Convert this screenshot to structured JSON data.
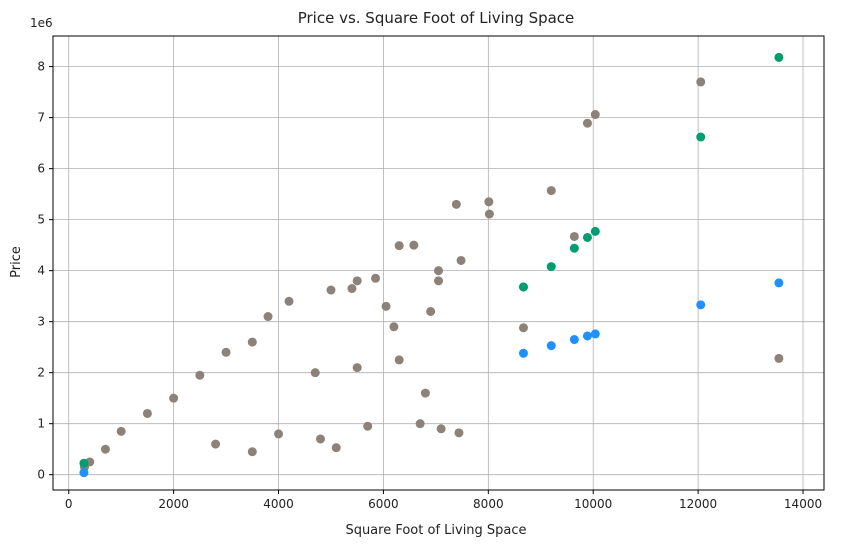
{
  "chart_data": {
    "type": "scatter",
    "title": "Price vs. Square Foot of Living Space",
    "xlabel": "Square Foot of Living Space",
    "ylabel": "Price",
    "y_offset_label": "1e6",
    "xlim": [
      -300,
      14400
    ],
    "ylim": [
      -300000,
      8600000
    ],
    "x_ticks": [
      0,
      2000,
      4000,
      6000,
      8000,
      10000,
      12000,
      14000
    ],
    "x_tick_labels": [
      "0",
      "2000",
      "4000",
      "6000",
      "8000",
      "10000",
      "12000",
      "14000"
    ],
    "y_ticks": [
      0,
      1000000,
      2000000,
      3000000,
      4000000,
      5000000,
      6000000,
      7000000,
      8000000
    ],
    "y_tick_labels": [
      "0",
      "1",
      "2",
      "3",
      "4",
      "5",
      "6",
      "7",
      "8"
    ],
    "grid": true,
    "series": [
      {
        "color": "#8c8279",
        "points": [
          [
            13540,
            2280000
          ],
          [
            12050,
            7700000
          ],
          [
            10040,
            7060000
          ],
          [
            9890,
            6890000
          ],
          [
            9640,
            4670000
          ],
          [
            9200,
            5570000
          ],
          [
            8670,
            2880000
          ],
          [
            8670,
            3680000
          ],
          [
            8010,
            5350000
          ],
          [
            8020,
            5110000
          ],
          [
            7390,
            5300000
          ],
          [
            7480,
            4200000
          ],
          [
            7050,
            4000000
          ],
          [
            7050,
            3800000
          ],
          [
            7440,
            820000
          ],
          [
            7100,
            900000
          ],
          [
            6580,
            4500000
          ],
          [
            6300,
            4490000
          ],
          [
            6050,
            3300000
          ],
          [
            5850,
            3850000
          ],
          [
            5500,
            3800000
          ],
          [
            5400,
            3650000
          ],
          [
            5000,
            3620000
          ],
          [
            4200,
            3400000
          ],
          [
            4700,
            2000000
          ],
          [
            5500,
            2100000
          ],
          [
            6300,
            2250000
          ],
          [
            6800,
            1600000
          ],
          [
            6700,
            1000000
          ],
          [
            5700,
            950000
          ],
          [
            5100,
            530000
          ],
          [
            4800,
            700000
          ],
          [
            3800,
            3100000
          ],
          [
            3500,
            2600000
          ],
          [
            3000,
            2400000
          ],
          [
            2500,
            1950000
          ],
          [
            2000,
            1500000
          ],
          [
            1500,
            1200000
          ],
          [
            1000,
            850000
          ],
          [
            700,
            500000
          ],
          [
            400,
            250000
          ],
          [
            300,
            150000
          ],
          [
            6900,
            3200000
          ],
          [
            6200,
            2900000
          ],
          [
            4000,
            800000
          ],
          [
            3500,
            450000
          ],
          [
            2800,
            600000
          ]
        ]
      },
      {
        "color": "#1e90ff",
        "points": [
          [
            290,
            40000
          ],
          [
            8670,
            2380000
          ],
          [
            9200,
            2530000
          ],
          [
            9640,
            2650000
          ],
          [
            9890,
            2720000
          ],
          [
            10040,
            2760000
          ],
          [
            12050,
            3330000
          ],
          [
            13540,
            3760000
          ]
        ]
      },
      {
        "color": "#009e6e",
        "points": [
          [
            290,
            225000
          ],
          [
            8670,
            3680000
          ],
          [
            9200,
            4080000
          ],
          [
            9640,
            4440000
          ],
          [
            9890,
            4650000
          ],
          [
            10040,
            4770000
          ],
          [
            12050,
            6620000
          ],
          [
            13540,
            8180000
          ]
        ]
      }
    ]
  }
}
